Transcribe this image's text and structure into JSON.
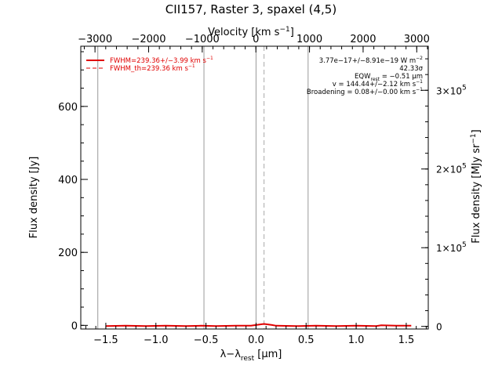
{
  "chart_data": {
    "type": "line",
    "title": "CII157, Raster 3, spaxel (4,5)",
    "bottom_axis": {
      "label_parts": [
        "λ−λ",
        "rest",
        " [μm]"
      ],
      "xlim": [
        -1.75,
        1.72
      ],
      "ticks": [
        -1.5,
        -1.0,
        -0.5,
        0.0,
        0.5,
        1.0,
        1.5
      ],
      "tick_labels": [
        "−1.5",
        "−1.0",
        "−0.5",
        "0.0",
        "0.5",
        "1.0",
        "1.5"
      ]
    },
    "top_axis": {
      "label": "Velocity [km s",
      "label_sup": "−1",
      "label_end": "]",
      "xlim": [
        -3265,
        3215
      ],
      "ticks": [
        -3000,
        -2000,
        -1000,
        0,
        1000,
        2000,
        3000
      ],
      "tick_labels": [
        "−3000",
        "−2000",
        "−1000",
        "0",
        "1000",
        "2000",
        "3000"
      ]
    },
    "left_axis": {
      "label": "Flux density [Jy]",
      "ylim": [
        -10,
        765
      ],
      "ticks": [
        0,
        200,
        400,
        600
      ],
      "tick_labels": [
        "0",
        "200",
        "400",
        "600"
      ]
    },
    "right_axis": {
      "label": "Flux density [MJy sr",
      "label_sup": "−1",
      "label_end": "]",
      "ticks": [
        0,
        100000,
        200000,
        300000
      ],
      "tick_labels": [
        {
          "base": "0",
          "exp": ""
        },
        {
          "base": "1×10",
          "exp": "5"
        },
        {
          "base": "2×10",
          "exp": "5"
        },
        {
          "base": "3×10",
          "exp": "5"
        }
      ],
      "ylim": [
        -3300,
        356000
      ]
    },
    "grid": false,
    "vertical_lines_um": [
      -1.58,
      -0.52,
      0.0,
      0.52
    ],
    "rest_marker_um": 0.08,
    "series": [
      {
        "name": "",
        "color": "#e00000",
        "style": "solid",
        "points": [
          [
            -1.5,
            -2
          ],
          [
            -1.3,
            -1
          ],
          [
            -1.1,
            -2
          ],
          [
            -0.9,
            -1
          ],
          [
            -0.7,
            -2
          ],
          [
            -0.55,
            -1
          ],
          [
            -0.4,
            -2
          ],
          [
            -0.2,
            -1
          ],
          [
            -0.05,
            -1
          ],
          [
            0.0,
            1
          ],
          [
            0.08,
            4
          ],
          [
            0.16,
            1
          ],
          [
            0.2,
            -1
          ],
          [
            0.4,
            -2
          ],
          [
            0.6,
            -1
          ],
          [
            0.8,
            -2
          ],
          [
            1.0,
            -1
          ],
          [
            1.2,
            -2
          ],
          [
            1.25,
            0
          ],
          [
            1.4,
            -1
          ],
          [
            1.55,
            -1
          ]
        ]
      }
    ],
    "legend": {
      "placement": "top-left",
      "entries": [
        {
          "style": "solid",
          "color": "#e00000",
          "text": "FWHM=239.36+/−3.99 km s",
          "sup": "−1"
        },
        {
          "style": "dashed",
          "color": "#e00000",
          "text": "FWHM_th=239.36 km s",
          "sup": "−1"
        }
      ]
    },
    "annotations": [
      {
        "text": "3.77e−17+/−8.91e−19 W m",
        "sup": "−2",
        "sub": ""
      },
      {
        "text": "42.33σ",
        "sup": "",
        "sub": ""
      },
      {
        "text": "EQW",
        "sub": "rest",
        "after": " = −0.51 μm"
      },
      {
        "text": "v = 144.44+/−2.12 km s",
        "sup": "−1",
        "sub": ""
      },
      {
        "text": "Broadening = 0.08+/−0.00 km s",
        "sup": "−1",
        "sub": ""
      }
    ]
  }
}
